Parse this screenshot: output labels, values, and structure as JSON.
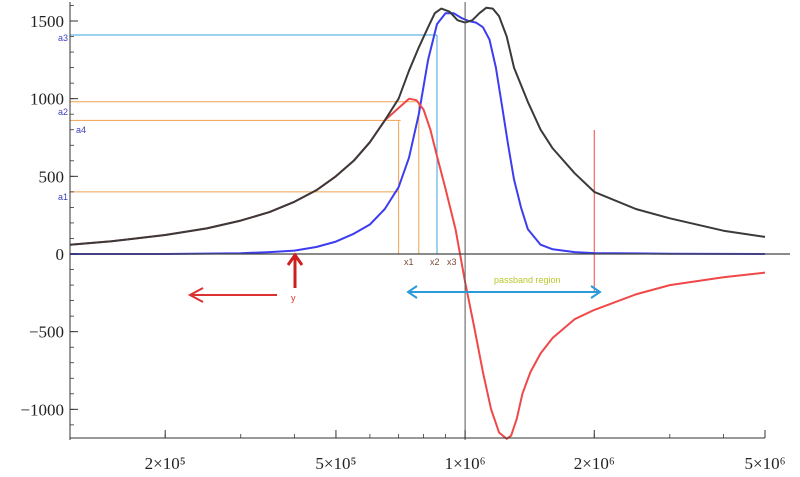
{
  "chart_data": {
    "type": "line",
    "x_scale": "log",
    "xlim": [
      120000,
      5000000
    ],
    "ylim": [
      -1200,
      1620
    ],
    "x_ticks": [
      {
        "value": 200000,
        "label": "2×10⁵"
      },
      {
        "value": 500000,
        "label": "5×10⁵"
      },
      {
        "value": 1000000,
        "label": "1×10⁶"
      },
      {
        "value": 2000000,
        "label": "2×10⁶"
      },
      {
        "value": 5000000,
        "label": "5×10⁶"
      }
    ],
    "y_ticks": [
      {
        "value": 1500,
        "label": "1500"
      },
      {
        "value": 1000,
        "label": "1000"
      },
      {
        "value": 500,
        "label": "500"
      },
      {
        "value": 0,
        "label": "0"
      },
      {
        "value": -500,
        "label": "−500"
      },
      {
        "value": -1000,
        "label": "−1000"
      }
    ],
    "colors": {
      "black": "#3a3a3a",
      "blue": "#3d3df0",
      "red": "#f04848",
      "orange": "#f0a050",
      "cyan": "#3aa3e0",
      "annotation_blue": "#4040c0",
      "annotation_red": "#e03030",
      "annotation_brown": "#7a4a3a",
      "passband_text": "#b8c830"
    },
    "series": [
      {
        "color": "black",
        "x": [
          120000,
          150000,
          200000,
          250000,
          300000,
          350000,
          400000,
          450000,
          500000,
          550000,
          600000,
          650000,
          700000,
          740000,
          780000,
          820000,
          850000,
          880000,
          920000,
          960000,
          1000000,
          1040000,
          1080000,
          1120000,
          1160000,
          1200000,
          1250000,
          1300000,
          1400000,
          1500000,
          1600000,
          1800000,
          2000000,
          2500000,
          3000000,
          4000000,
          5000000
        ],
        "y": [
          60,
          82,
          122,
          165,
          215,
          270,
          336,
          410,
          500,
          600,
          720,
          860,
          1000,
          1180,
          1330,
          1460,
          1550,
          1580,
          1560,
          1505,
          1490,
          1505,
          1550,
          1585,
          1580,
          1530,
          1400,
          1200,
          980,
          800,
          680,
          520,
          400,
          290,
          230,
          150,
          110
        ]
      },
      {
        "color": "blue",
        "x": [
          120000,
          200000,
          300000,
          350000,
          400000,
          450000,
          500000,
          550000,
          600000,
          650000,
          700000,
          740000,
          780000,
          820000,
          860000,
          900000,
          940000,
          980000,
          1020000,
          1060000,
          1100000,
          1140000,
          1180000,
          1220000,
          1260000,
          1300000,
          1350000,
          1400000,
          1500000,
          1600000,
          1800000,
          2000000,
          3000000,
          5000000
        ],
        "y": [
          0,
          0,
          5,
          12,
          22,
          45,
          80,
          130,
          190,
          290,
          430,
          620,
          900,
          1250,
          1480,
          1550,
          1550,
          1520,
          1500,
          1490,
          1460,
          1380,
          1200,
          950,
          700,
          480,
          300,
          160,
          60,
          30,
          12,
          6,
          2,
          0
        ]
      },
      {
        "color": "red",
        "x": [
          120000,
          150000,
          200000,
          250000,
          300000,
          350000,
          400000,
          450000,
          500000,
          550000,
          600000,
          650000,
          700000,
          740000,
          770000,
          800000,
          830000,
          860000,
          900000,
          950000,
          1000000,
          1050000,
          1100000,
          1150000,
          1200000,
          1250000,
          1280000,
          1320000,
          1360000,
          1420000,
          1500000,
          1600000,
          1800000,
          2000000,
          2500000,
          3000000,
          4000000,
          5000000
        ],
        "y": [
          60,
          82,
          122,
          165,
          215,
          270,
          336,
          410,
          500,
          600,
          720,
          860,
          940,
          1000,
          990,
          930,
          800,
          630,
          420,
          160,
          -180,
          -470,
          -760,
          -1000,
          -1150,
          -1190,
          -1170,
          -1060,
          -900,
          -760,
          -640,
          -540,
          -420,
          -360,
          -260,
          -200,
          -150,
          -120
        ]
      }
    ],
    "annotations": {
      "a1": "a1",
      "a2": "a2",
      "a3": "a3",
      "a4": "a4",
      "x1": "x1",
      "x2": "x2",
      "x3": "x3",
      "y": "y",
      "passband": "passband region"
    },
    "reference_levels": {
      "a1": 400,
      "a2": 980,
      "a3": 1410,
      "a4": 860
    },
    "reference_x": {
      "x1": 700000,
      "x2": 780000,
      "x3": 860000,
      "passband_end": 2000000
    }
  }
}
